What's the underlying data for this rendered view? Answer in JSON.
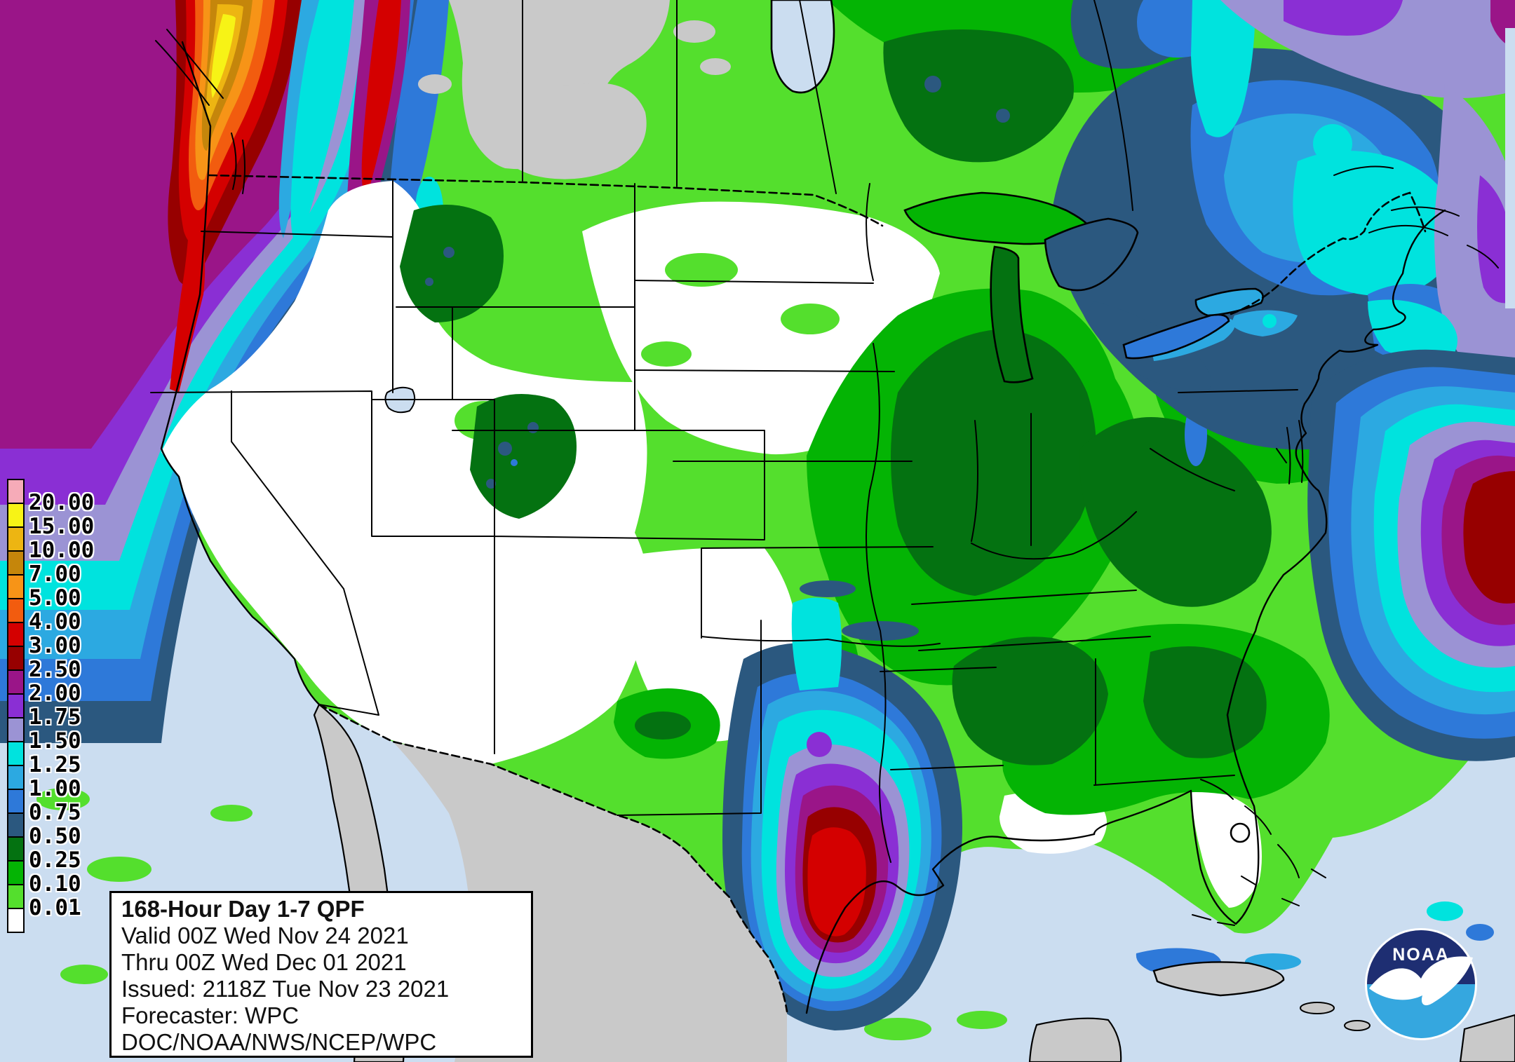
{
  "info_box": {
    "title": "168-Hour Day 1-7 QPF",
    "line1": "Valid 00Z Wed Nov 24 2021",
    "line2": "Thru 00Z Wed Dec 01 2021",
    "line3": "Issued: 2118Z Tue Nov 23 2021",
    "line4": "Forecaster: WPC",
    "line5": "DOC/NOAA/NWS/NCEP/WPC"
  },
  "logo": {
    "label": "NOAA"
  },
  "legend": {
    "description": "QPF amount scale, inches",
    "items": [
      {
        "label": "20.00",
        "color": "#F6ABB8"
      },
      {
        "label": "15.00",
        "color": "#F7F316"
      },
      {
        "label": "10.00",
        "color": "#EDB512"
      },
      {
        "label": "7.00",
        "color": "#C5860B"
      },
      {
        "label": "5.00",
        "color": "#F79417"
      },
      {
        "label": "4.00",
        "color": "#F25C0F"
      },
      {
        "label": "3.00",
        "color": "#D40000"
      },
      {
        "label": "2.50",
        "color": "#970000"
      },
      {
        "label": "2.00",
        "color": "#9A1588"
      },
      {
        "label": "1.75",
        "color": "#8A2FD4"
      },
      {
        "label": "1.50",
        "color": "#9B93D4"
      },
      {
        "label": "1.25",
        "color": "#00E3DE"
      },
      {
        "label": "1.00",
        "color": "#2CA9E1"
      },
      {
        "label": "0.75",
        "color": "#2E79D9"
      },
      {
        "label": "0.50",
        "color": "#2B587F"
      },
      {
        "label": "0.25",
        "color": "#047211"
      },
      {
        "label": "0.10",
        "color": "#04B404"
      },
      {
        "label": "0.01",
        "color": "#54DF2D"
      },
      {
        "label": "",
        "color": "#FFFFFF"
      }
    ]
  },
  "colors": {
    "ocean": "#CBDDF0",
    "nodata": "#C9C9C9",
    "white": "#FFFFFF",
    "c001": "#54DF2D",
    "c010": "#04B404",
    "c025": "#047211",
    "c050": "#2B587F",
    "c075": "#2E79D9",
    "c100": "#2CA9E1",
    "c125": "#00E3DE",
    "c150": "#9B93D4",
    "c175": "#8A2FD4",
    "c200": "#9A1588",
    "c250": "#970000",
    "c300": "#D40000",
    "c400": "#F25C0F",
    "c500": "#F79417",
    "c700": "#C5860B",
    "c1000": "#EDB512",
    "c1500": "#F7F316",
    "c2000": "#F6ABB8",
    "logo_navy": "#1E2E72",
    "logo_blue": "#35A7DF"
  }
}
